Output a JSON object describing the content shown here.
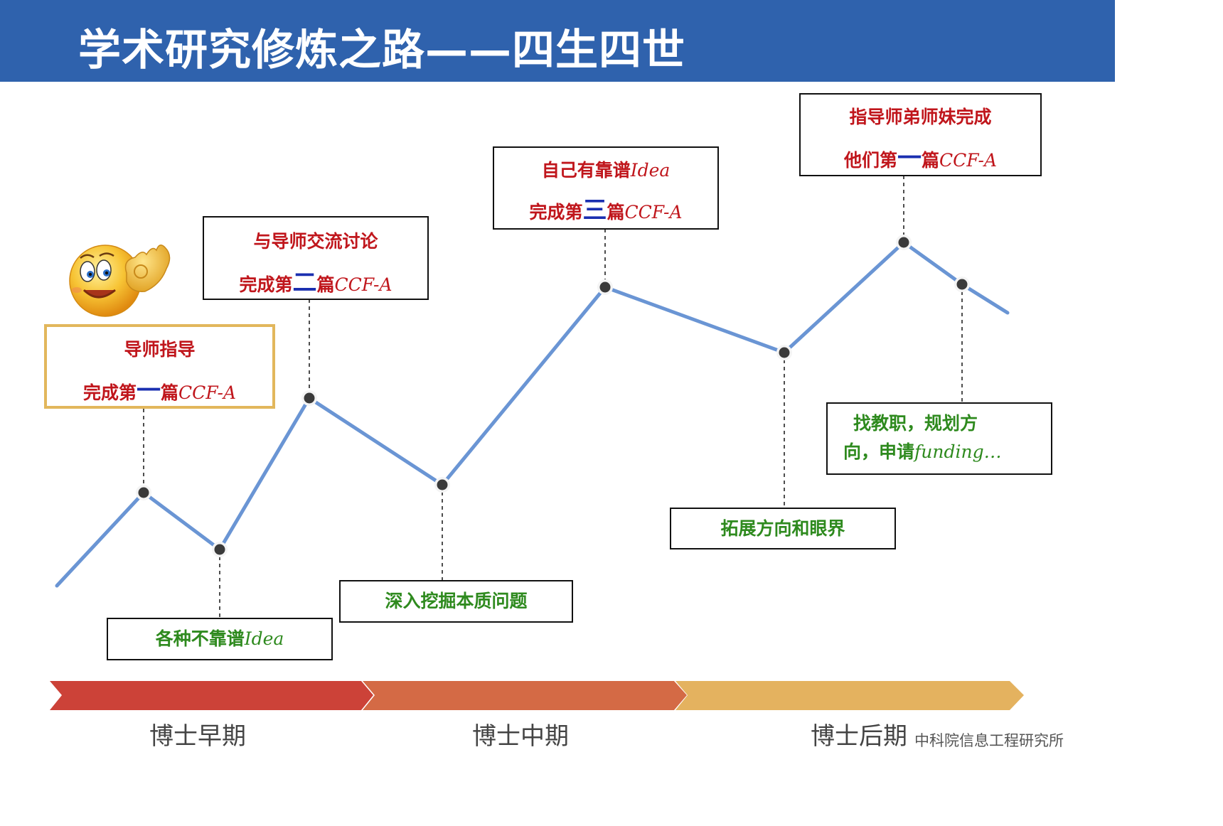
{
  "header": {
    "title": "学术研究修炼之路——四生四世"
  },
  "boxes": {
    "b1": {
      "line1": "导师指导",
      "line2_pre": "完成第",
      "line2_num": "一",
      "line2_mid": "篇",
      "line2_en": "CCF-A"
    },
    "b2": {
      "line1": "与导师交流讨论",
      "line2_pre": "完成第",
      "line2_num": "二",
      "line2_mid": "篇",
      "line2_en": "CCF-A"
    },
    "b3": {
      "line1_pre": "自己有靠谱",
      "line1_en": "Idea",
      "line2_pre": "完成第",
      "line2_num": "三",
      "line2_mid": "篇",
      "line2_en": "CCF-A"
    },
    "b4": {
      "line1": "指导师弟师妹完成",
      "line2_pre": "他们第",
      "line2_num": "一",
      "line2_mid": "篇",
      "line2_en": "CCF-A"
    },
    "g1": {
      "pre": "各种不靠谱",
      "en": "Idea"
    },
    "g2": {
      "text": "深入挖掘本质问题"
    },
    "g3": {
      "text": "拓展方向和眼界"
    },
    "g4": {
      "line1": "找教职，规划方",
      "line2_pre": "向，申请",
      "line2_en": "funding…"
    }
  },
  "phases": [
    {
      "label": "博士早期",
      "color": "#cc4238"
    },
    {
      "label": "博士中期",
      "color": "#d46a45"
    },
    {
      "label": "博士后期",
      "color": "#e4b25f"
    }
  ],
  "footer": {
    "text": "中科院信息工程研究所"
  },
  "colors": {
    "line": "#6a95d4",
    "marker": "#3a3a3a",
    "header_bg": "#2f62ad"
  }
}
